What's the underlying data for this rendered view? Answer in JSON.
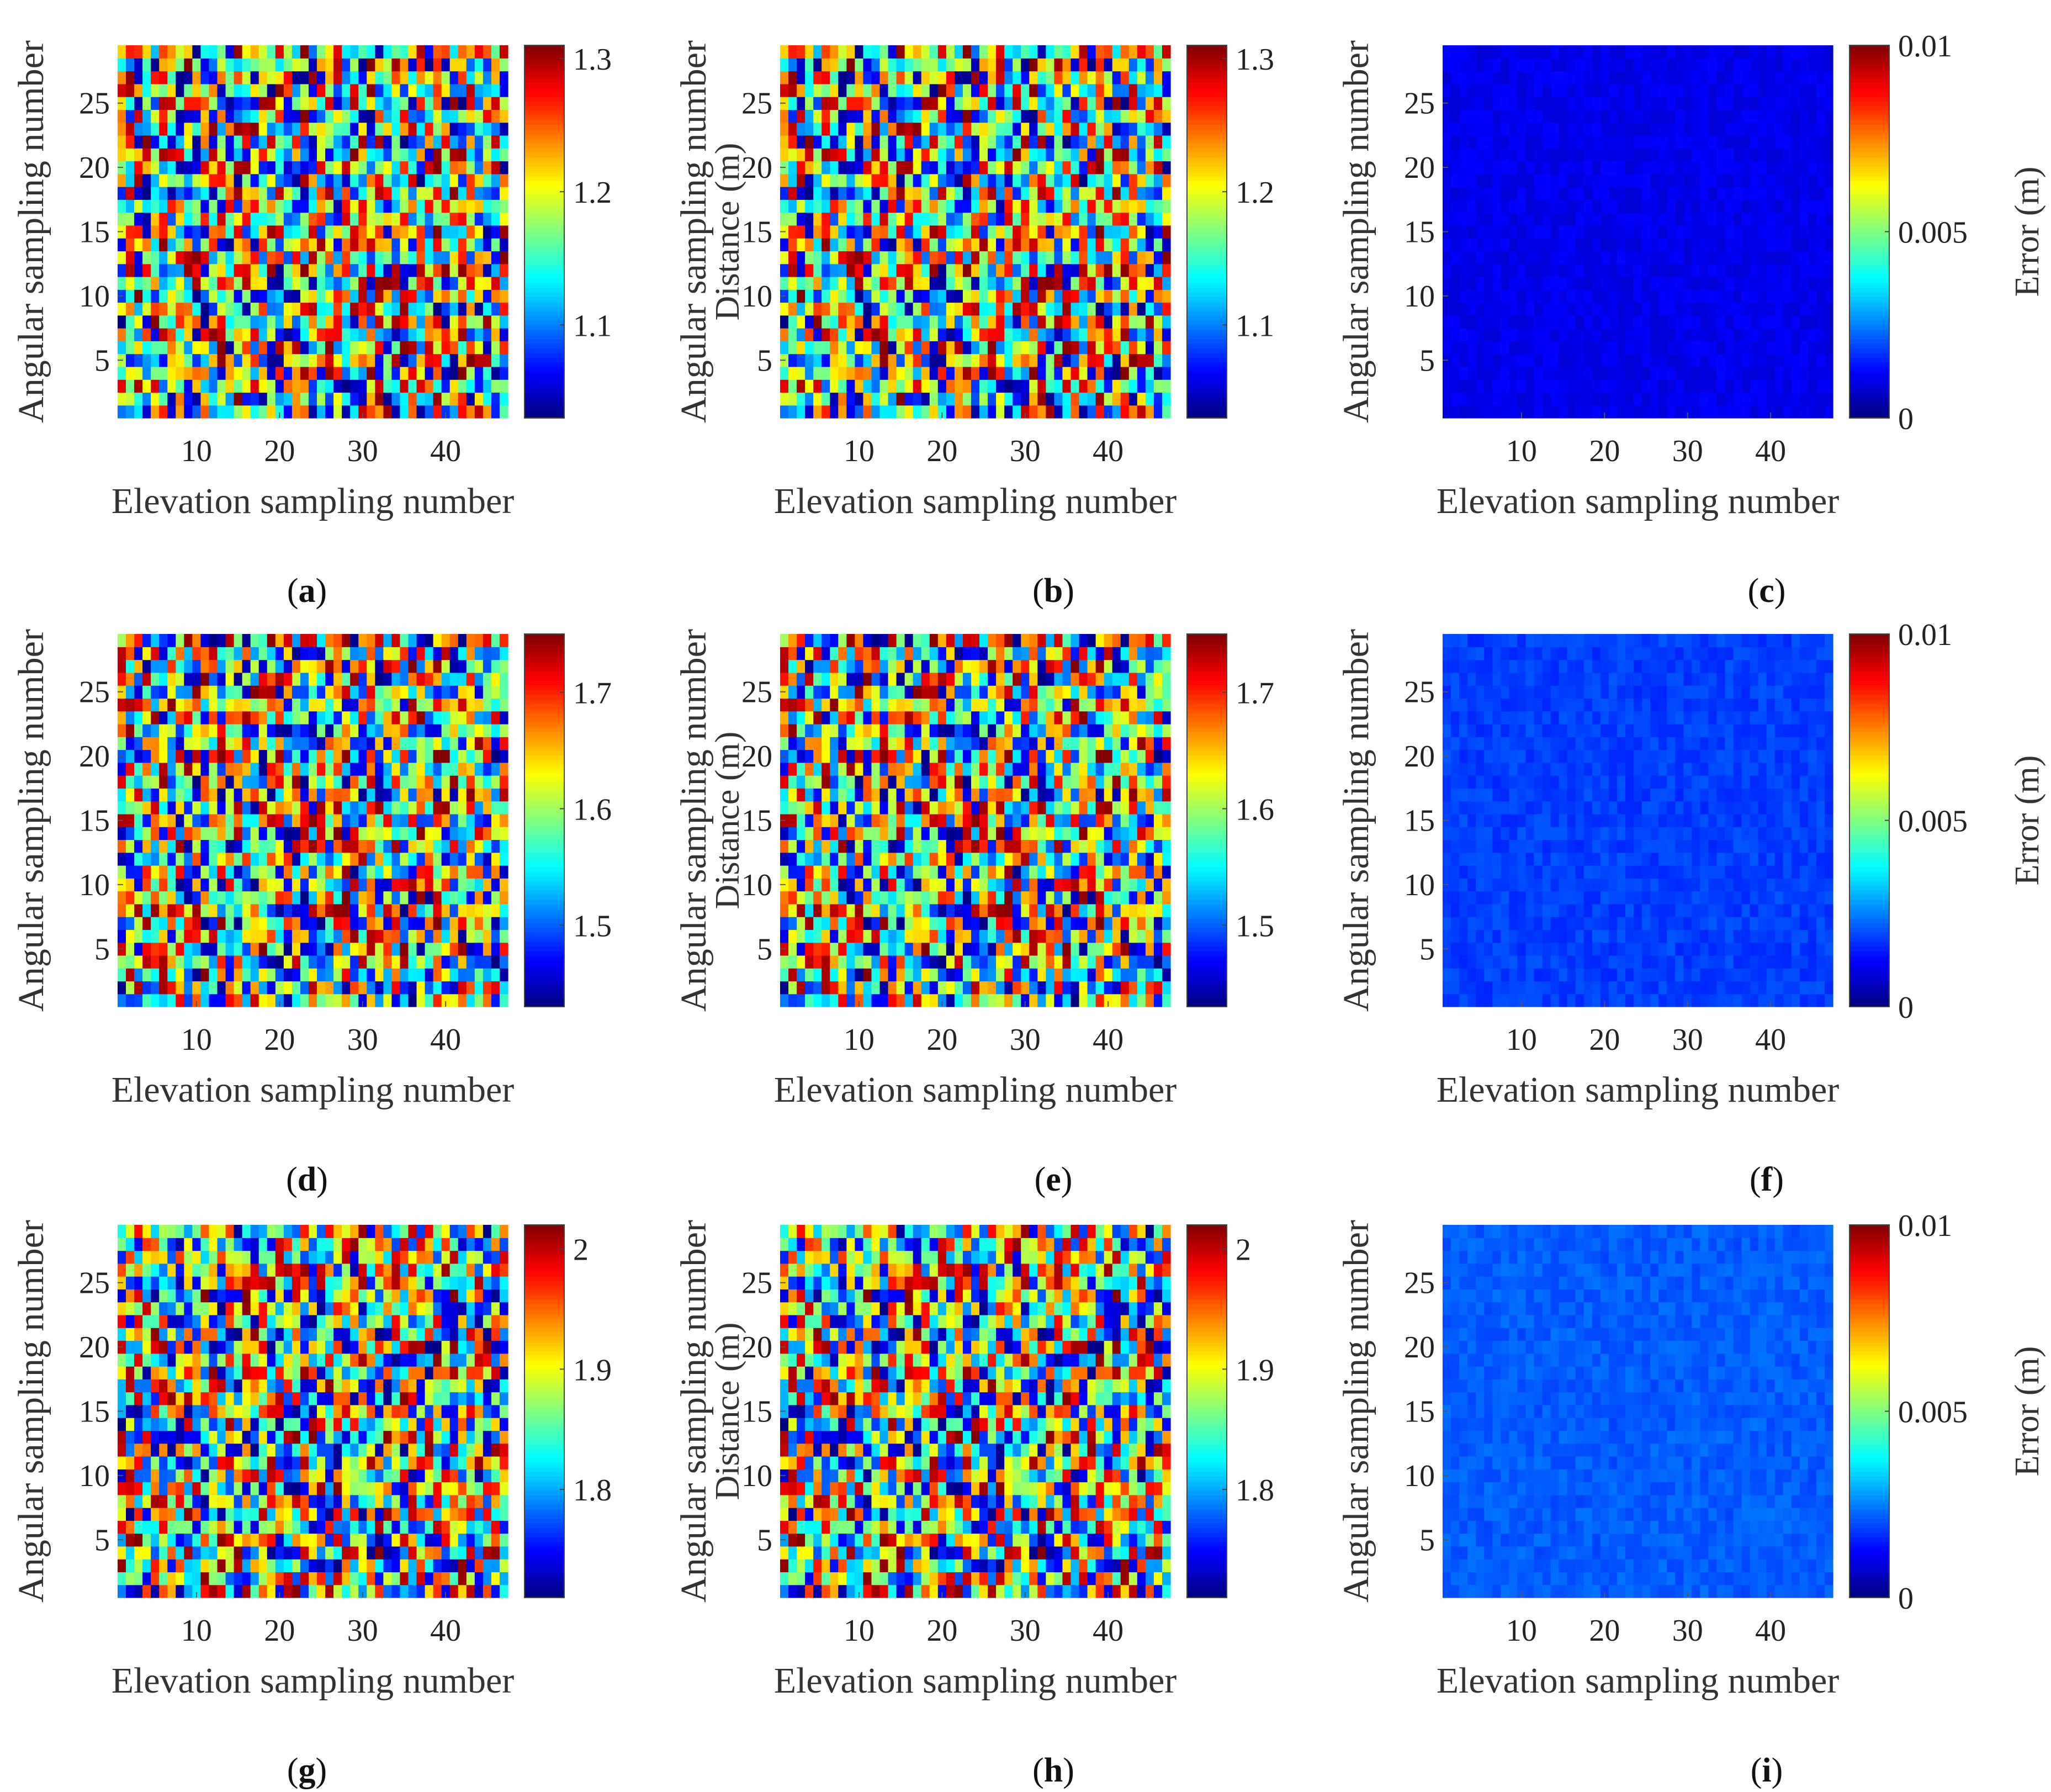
{
  "figure": {
    "grid": {
      "cols": 47,
      "rows": 29
    },
    "x_ticks": [
      10,
      20,
      30,
      40
    ],
    "y_ticks": [
      5,
      10,
      15,
      20,
      25
    ],
    "xlabel": "Elevation sampling number",
    "ylabel": "Angular sampling number",
    "dist_ylabel": "Distance (m)",
    "err_ylabel": "Error (m)"
  },
  "chart_data": [
    {
      "panel": "a",
      "type": "heatmap",
      "xlabel": "Elevation sampling number",
      "ylabel": "Angular sampling number",
      "colorbar_label": "",
      "colorbar_range": [
        1.03,
        1.31
      ],
      "colorbar_ticks": [
        "1.1",
        "1.2",
        "1.3"
      ],
      "colorbar_tick_values": [
        1.1,
        1.2,
        1.3
      ],
      "value_range": [
        1.03,
        1.31
      ],
      "seed": 11,
      "field": "random"
    },
    {
      "panel": "b",
      "type": "heatmap",
      "xlabel": "Elevation sampling number",
      "ylabel": "Angular sampling number",
      "colorbar_label": "Distance (m)",
      "colorbar_range": [
        1.03,
        1.31
      ],
      "colorbar_ticks": [
        "1.1",
        "1.2",
        "1.3"
      ],
      "colorbar_tick_values": [
        1.1,
        1.2,
        1.3
      ],
      "value_range": [
        1.03,
        1.31
      ],
      "seed": 11,
      "field": "random"
    },
    {
      "panel": "c",
      "type": "heatmap",
      "xlabel": "Elevation sampling number",
      "ylabel": "Angular sampling number",
      "colorbar_label": "Error (m)",
      "colorbar_range": [
        0,
        0.01
      ],
      "colorbar_ticks": [
        "0",
        "0.005",
        "0.01"
      ],
      "colorbar_tick_values": [
        0,
        0.005,
        0.01
      ],
      "value_range": [
        0.0008,
        0.0013
      ],
      "seed": 12,
      "field": "error"
    },
    {
      "panel": "d",
      "type": "heatmap",
      "xlabel": "Elevation sampling number",
      "ylabel": "Angular sampling number",
      "colorbar_label": "",
      "colorbar_range": [
        1.43,
        1.75
      ],
      "colorbar_ticks": [
        "1.5",
        "1.6",
        "1.7"
      ],
      "colorbar_tick_values": [
        1.5,
        1.6,
        1.7
      ],
      "value_range": [
        1.43,
        1.75
      ],
      "seed": 21,
      "field": "random"
    },
    {
      "panel": "e",
      "type": "heatmap",
      "xlabel": "Elevation sampling number",
      "ylabel": "Angular sampling number",
      "colorbar_label": "Distance (m)",
      "colorbar_range": [
        1.43,
        1.75
      ],
      "colorbar_ticks": [
        "1.5",
        "1.6",
        "1.7"
      ],
      "colorbar_tick_values": [
        1.5,
        1.6,
        1.7
      ],
      "value_range": [
        1.43,
        1.75
      ],
      "seed": 21,
      "field": "random"
    },
    {
      "panel": "f",
      "type": "heatmap",
      "xlabel": "Elevation sampling number",
      "ylabel": "Angular sampling number",
      "colorbar_label": "Error (m)",
      "colorbar_range": [
        0,
        0.01
      ],
      "colorbar_ticks": [
        "0",
        "0.005",
        "0.01"
      ],
      "colorbar_tick_values": [
        0,
        0.005,
        0.01
      ],
      "value_range": [
        0.0016,
        0.0021
      ],
      "seed": 22,
      "field": "error"
    },
    {
      "panel": "g",
      "type": "heatmap",
      "xlabel": "Elevation sampling number",
      "ylabel": "Angular sampling number",
      "colorbar_label": "",
      "colorbar_range": [
        1.71,
        2.02
      ],
      "colorbar_ticks": [
        "1.8",
        "1.9",
        "2"
      ],
      "colorbar_tick_values": [
        1.8,
        1.9,
        2.0
      ],
      "value_range": [
        1.71,
        2.02
      ],
      "seed": 31,
      "field": "random"
    },
    {
      "panel": "h",
      "type": "heatmap",
      "xlabel": "Elevation sampling number",
      "ylabel": "Angular sampling number",
      "colorbar_label": "Distance (m)",
      "colorbar_range": [
        1.71,
        2.02
      ],
      "colorbar_ticks": [
        "1.8",
        "1.9",
        "2"
      ],
      "colorbar_tick_values": [
        1.8,
        1.9,
        2.0
      ],
      "value_range": [
        1.71,
        2.02
      ],
      "seed": 31,
      "field": "random"
    },
    {
      "panel": "i",
      "type": "heatmap",
      "xlabel": "Elevation sampling number",
      "ylabel": "Angular sampling number",
      "colorbar_label": "Error (m)",
      "colorbar_range": [
        0,
        0.01
      ],
      "colorbar_ticks": [
        "0",
        "0.005",
        "0.01"
      ],
      "colorbar_tick_values": [
        0,
        0.005,
        0.01
      ],
      "value_range": [
        0.0019,
        0.0024
      ],
      "seed": 32,
      "field": "error"
    }
  ]
}
